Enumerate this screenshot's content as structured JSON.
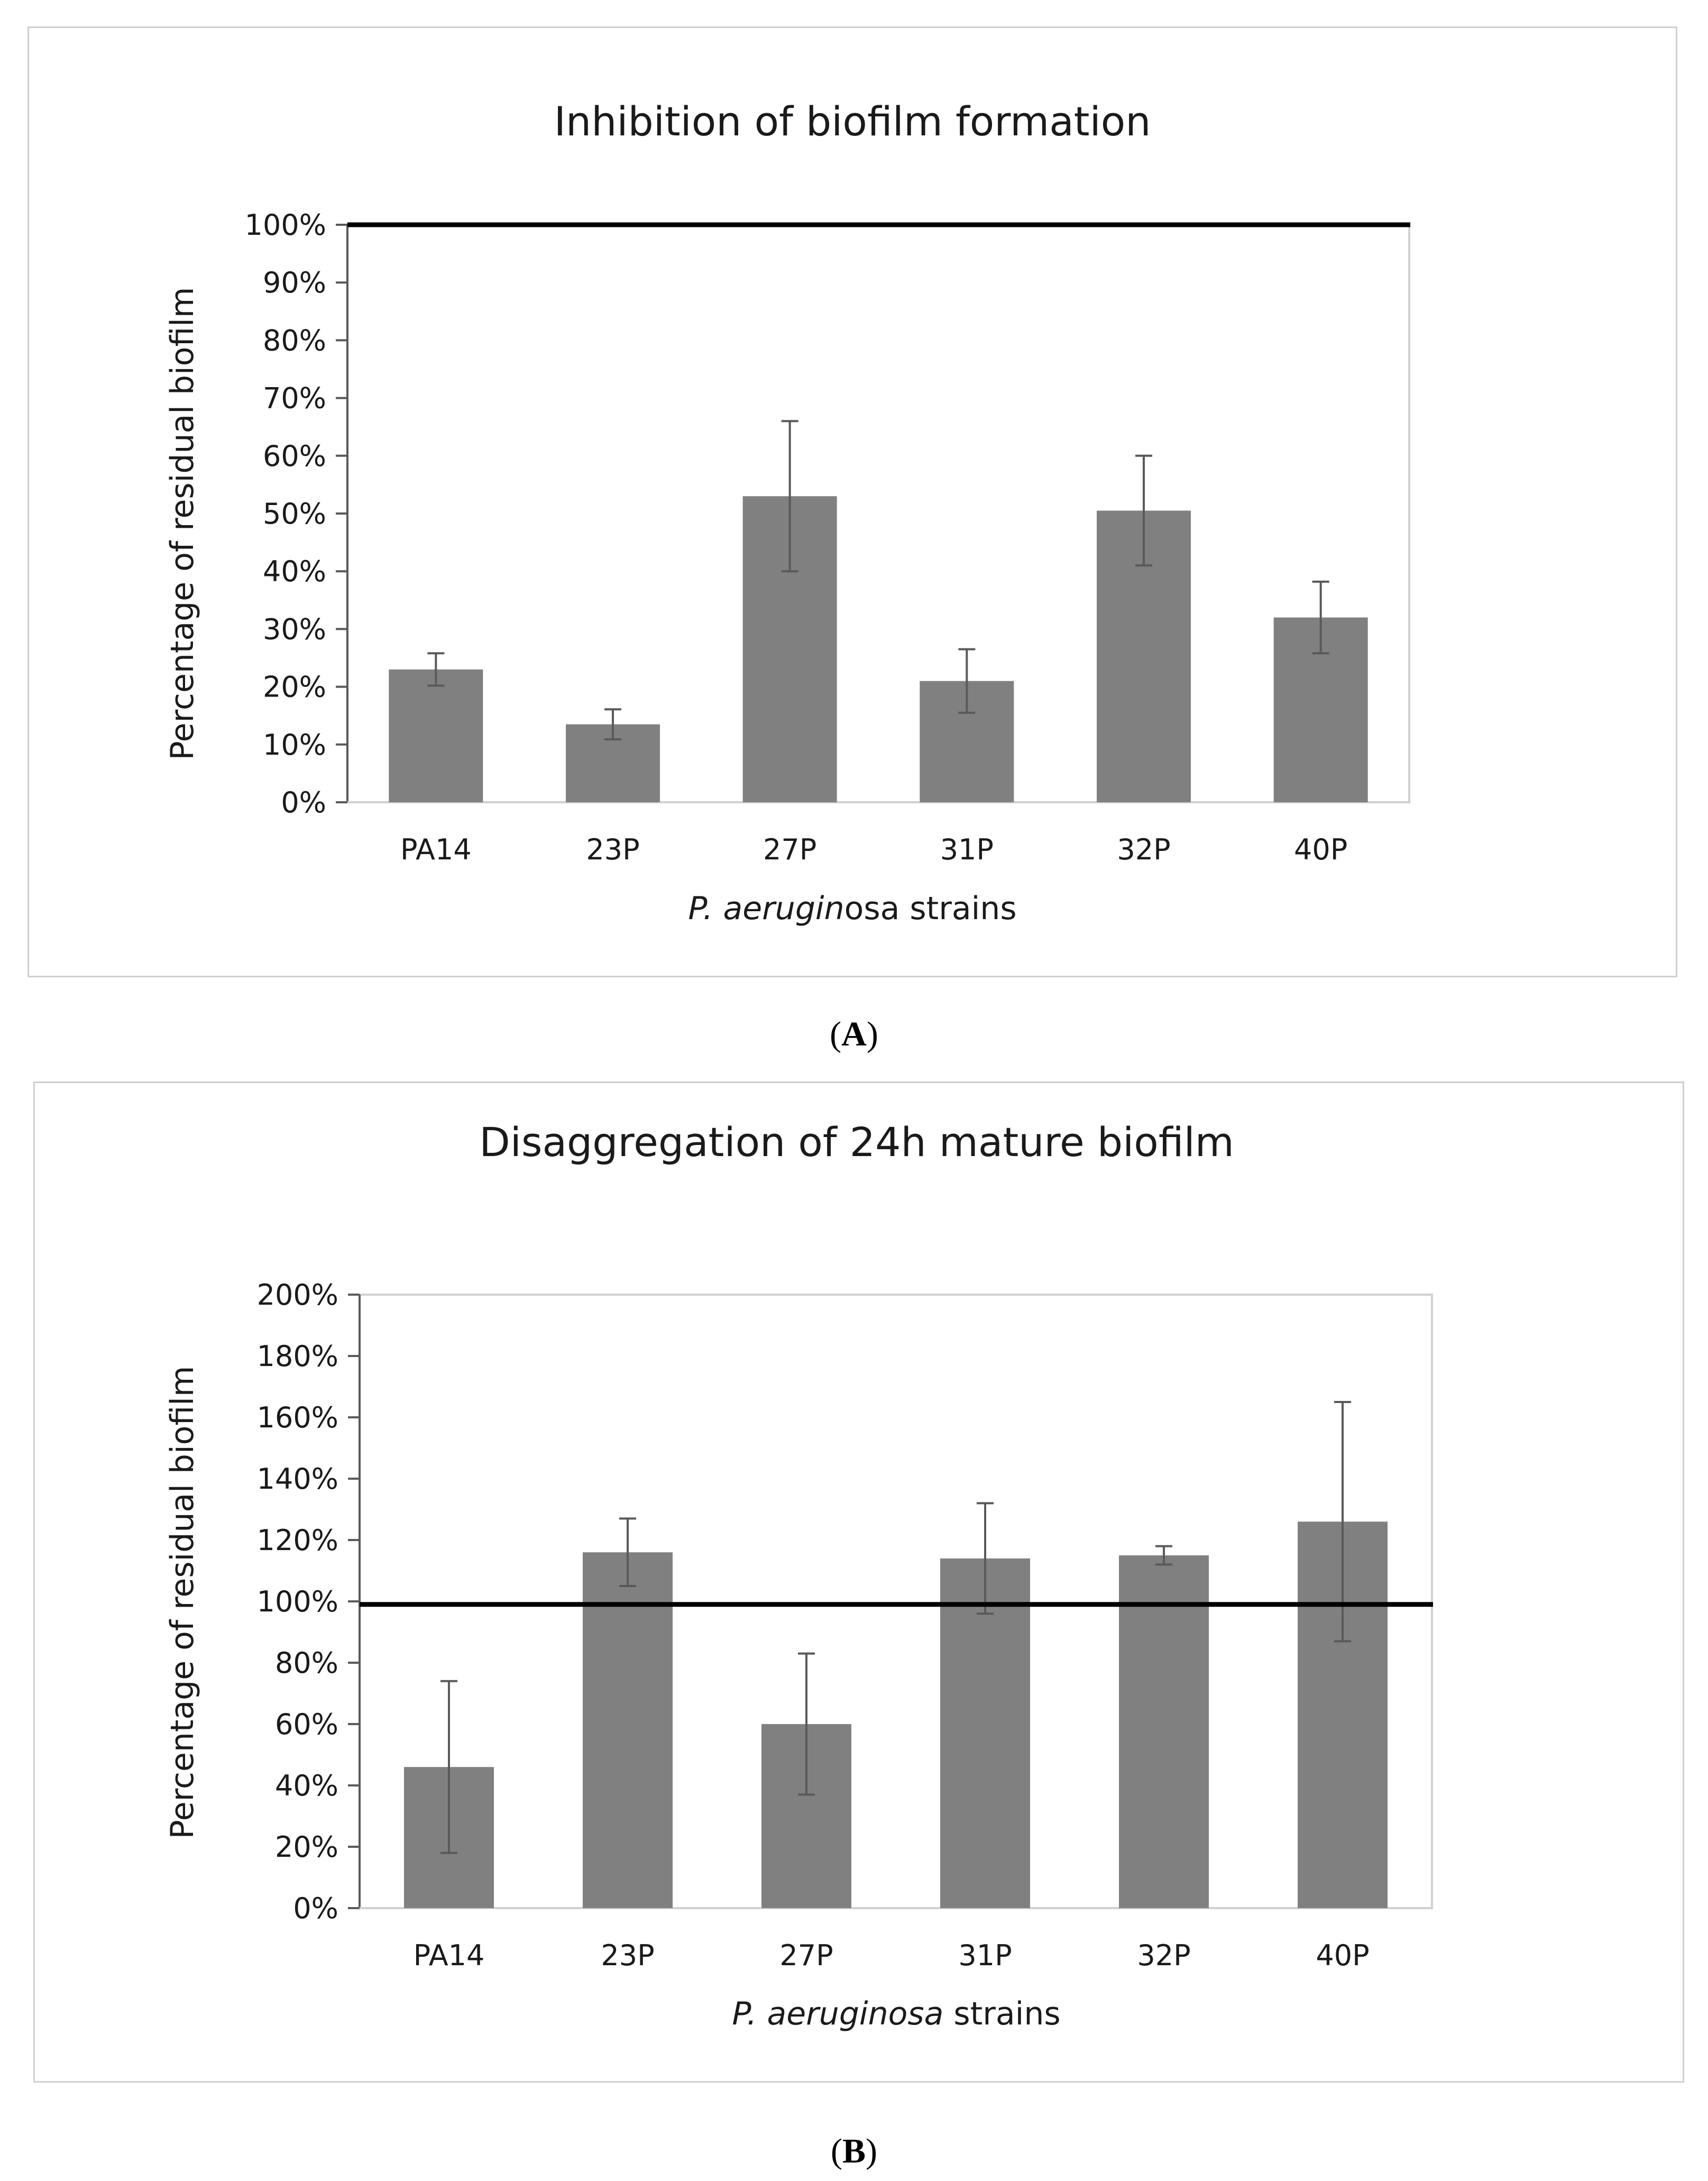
{
  "figure": {
    "panel_a_label": "A",
    "panel_b_label": "B"
  },
  "chart_data": [
    {
      "type": "bar",
      "title": "Inhibition of biofilm formation",
      "xlabel_italic": "P. aerugin",
      "xlabel_rest": "osa strains",
      "ylabel": "Percentage of residual biofilm",
      "categories": [
        "PA14",
        "23P",
        "27P",
        "31P",
        "32P",
        "40P"
      ],
      "values": [
        23,
        13.5,
        53,
        21,
        50.5,
        32
      ],
      "errors": [
        2.8,
        2.6,
        13,
        5.5,
        9.5,
        6.2
      ],
      "ylim": [
        0,
        100
      ],
      "ytick_step": 10,
      "reference_line": 100,
      "bar_color": "#808080"
    },
    {
      "type": "bar",
      "title": "Disaggregation of 24h mature biofilm",
      "xlabel_italic": "P. aeruginosa",
      "xlabel_rest": " strains",
      "ylabel": "Percentage of residual biofilm",
      "categories": [
        "PA14",
        "23P",
        "27P",
        "31P",
        "32P",
        "40P"
      ],
      "values": [
        46,
        116,
        60,
        114,
        115,
        126
      ],
      "errors": [
        28,
        11,
        23,
        18,
        3,
        39
      ],
      "ylim": [
        0,
        200
      ],
      "ytick_step": 20,
      "reference_line": 99,
      "bar_color": "#808080"
    }
  ]
}
